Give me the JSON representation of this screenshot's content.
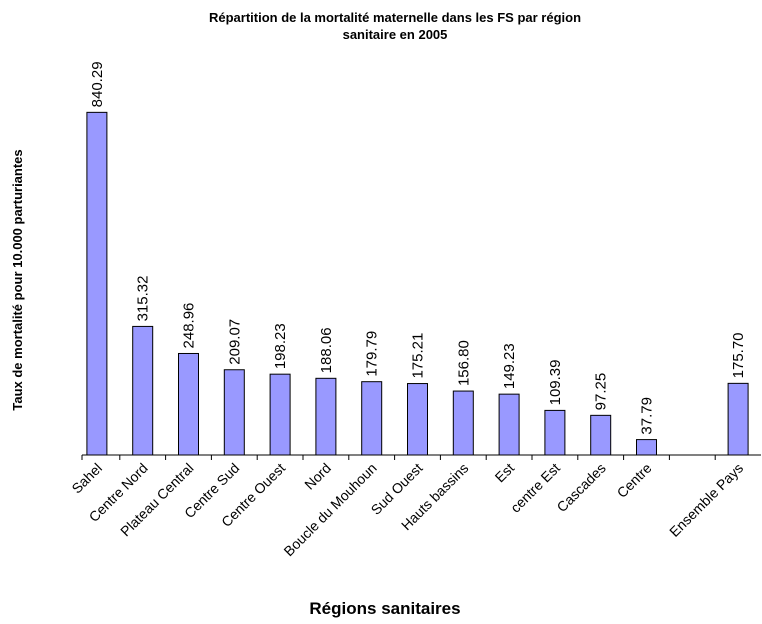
{
  "chart_data": {
    "type": "bar",
    "title": "Répartition de la mortalité maternelle dans les FS par région sanitaire en 2005",
    "x_label": "Régions sanitaires",
    "y_label": "Taux de mortalité pour 10.000 parturiantes",
    "categories": [
      "Sahel",
      "Centre Nord",
      "Plateau Central",
      "Centre Sud",
      "Centre Ouest",
      "Nord",
      "Boucle du Mouhoun",
      "Sud Ouest",
      "Hauts bassins",
      "Est",
      "centre Est",
      "Cascades",
      "Centre",
      null,
      "Ensemble Pays"
    ],
    "values": [
      840.29,
      315.32,
      248.96,
      209.07,
      198.23,
      188.06,
      179.79,
      175.21,
      156.8,
      149.23,
      109.39,
      97.25,
      37.79,
      null,
      175.7
    ],
    "value_labels": [
      "840.29",
      "315.32",
      "248.96",
      "209.07",
      "198.23",
      "188.06",
      "179.79",
      "175.21",
      "156.80",
      "149.23",
      "109.39",
      "97.25",
      "37.79",
      null,
      "175.70"
    ],
    "color": "#9999ff",
    "ylim": [
      0,
      900
    ]
  }
}
